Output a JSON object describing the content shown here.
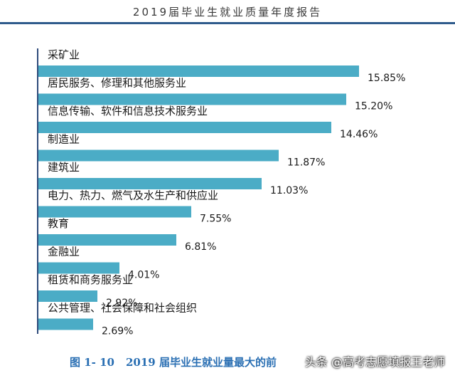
{
  "header": {
    "title": "2019届毕业生就业质量年度报告"
  },
  "caption": {
    "number": "图 1- 10",
    "text": "2019 届毕业生就业量最大的前"
  },
  "watermark": {
    "text": "头条 @高考志愿填报王老师"
  },
  "colors": {
    "bar": "#4bacc6",
    "axis": "#2e4a7a",
    "header_rule": "#2f5b8c",
    "caption": "#2a6fb3"
  },
  "chart_data": {
    "type": "bar",
    "orientation": "horizontal",
    "categories": [
      "采矿业",
      "居民服务、修理和其他服务业",
      "信息传输、软件和信息技术服务业",
      "制造业",
      "建筑业",
      "电力、热力、燃气及水生产和供应业",
      "教育",
      "金融业",
      "租赁和商务服务业",
      "公共管理、社会保障和社会组织"
    ],
    "values": [
      15.85,
      15.2,
      14.46,
      11.87,
      11.03,
      7.55,
      6.81,
      4.01,
      2.92,
      2.69
    ],
    "value_labels": [
      "15.85%",
      "15.20%",
      "14.46%",
      "11.87%",
      "11.03%",
      "7.55%",
      "6.81%",
      "4.01%",
      "2.92%",
      "2.69%"
    ],
    "title": "",
    "xlabel": "",
    "ylabel": "",
    "xlim": [
      0,
      16.5
    ],
    "grid": false,
    "legend": "none"
  }
}
